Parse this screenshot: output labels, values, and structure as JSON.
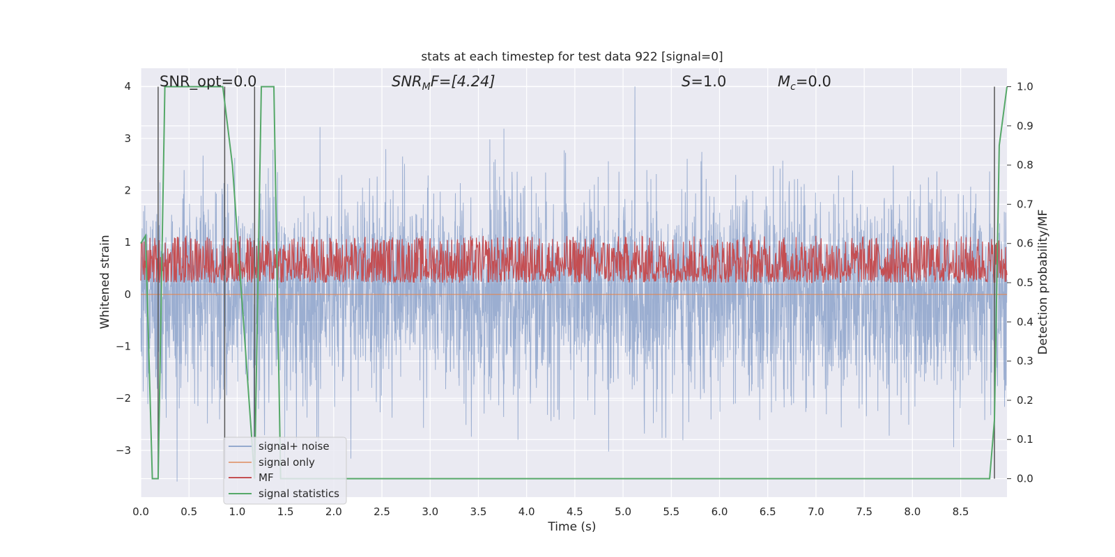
{
  "chart_data": {
    "type": "line",
    "title": "stats at each timestep for test data 922 [signal=0]",
    "xlabel": "Time (s)",
    "ylabel": "Whitened strain",
    "ylabel_right": "Detection probability/MF",
    "xlim": [
      0.0,
      8.98
    ],
    "ylim": [
      -3.9,
      4.35
    ],
    "ylim_right": [
      -0.047,
      1.047
    ],
    "xticks": [
      "0.0",
      "0.5",
      "1.0",
      "1.5",
      "2.0",
      "2.5",
      "3.0",
      "3.5",
      "4.0",
      "4.5",
      "5.0",
      "5.5",
      "6.0",
      "6.5",
      "7.0",
      "7.5",
      "8.0",
      "8.5"
    ],
    "yticks": [
      "4",
      "3",
      "2",
      "1",
      "0",
      "−1",
      "−2",
      "−3"
    ],
    "yticks_right": [
      "1.0",
      "0.9",
      "0.8",
      "0.7",
      "0.6",
      "0.5",
      "0.4",
      "0.3",
      "0.2",
      "0.1",
      "0.0"
    ],
    "grid": true,
    "legend_position": "lower-left",
    "annotations": {
      "snr_opt": "SNR_opt=0.0",
      "snr_mf_main": "SNR",
      "snr_mf_sub": "M",
      "snr_mf_tail": "F=[4.24]",
      "s_main": "S",
      "s_tail": "=1.0",
      "mc_main": "M",
      "mc_sub": "c",
      "mc_tail": "=0.0"
    },
    "colors": {
      "signal_noise": "#4c72b0",
      "signal_only": "#dd8452",
      "mf": "#c44e52",
      "signal_statistics": "#55a868",
      "vertical_markers": "#555555",
      "background": "#eaeaf2"
    },
    "series": [
      {
        "name": "signal+ noise",
        "description_range": [
          -3.6,
          4.0
        ],
        "approx_std": 1.0
      },
      {
        "name": "signal only",
        "values_constant": 0.0
      },
      {
        "name": "MF",
        "right_axis_range": [
          0.5,
          0.62
        ]
      },
      {
        "name": "signal statistics",
        "x": [
          0.0,
          0.05,
          0.12,
          0.18,
          0.25,
          0.85,
          0.95,
          1.18,
          1.25,
          1.38,
          1.45,
          8.8,
          8.85,
          8.9,
          8.98
        ],
        "y": [
          0.6,
          0.62,
          0.0,
          0.0,
          1.0,
          1.0,
          0.8,
          0.0,
          1.0,
          1.0,
          0.0,
          0.0,
          0.15,
          0.85,
          1.0
        ]
      }
    ],
    "vertical_markers_x": [
      0.18,
      0.87,
      1.18,
      8.85
    ]
  },
  "legend": [
    {
      "label": "signal+ noise"
    },
    {
      "label": "signal only"
    },
    {
      "label": "MF"
    },
    {
      "label": "signal statistics"
    }
  ]
}
